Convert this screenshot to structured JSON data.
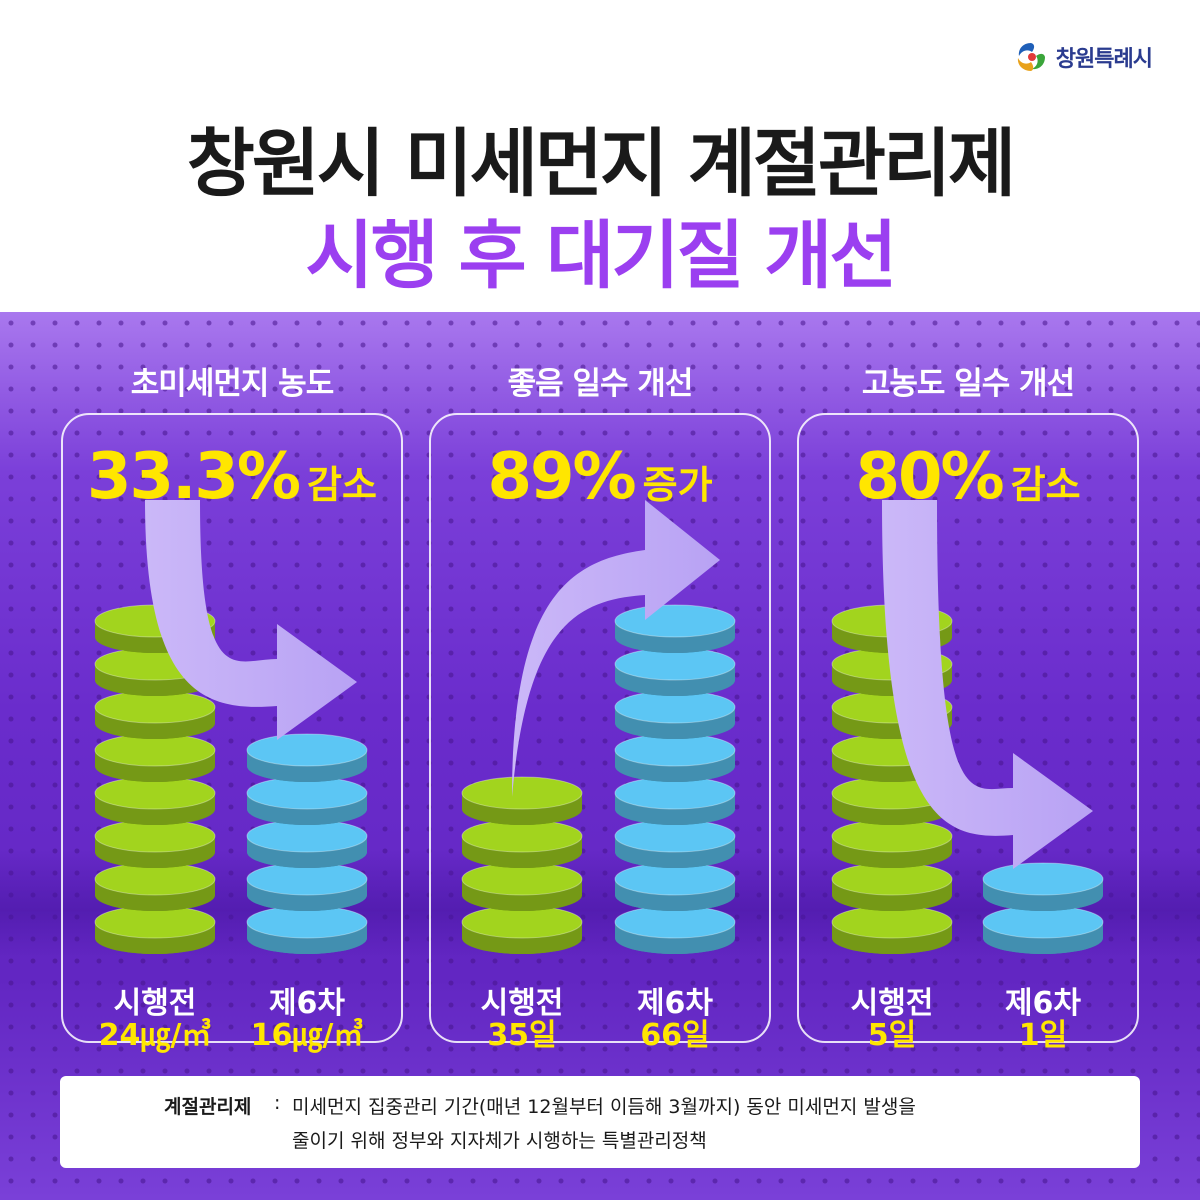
{
  "logo": {
    "text": "창원특례시"
  },
  "header": {
    "title_line1": "창원시 미세먼지 계절관리제",
    "title_line2": "시행 후 대기질 개선"
  },
  "colors": {
    "accent_purple": "#9b3ff0",
    "headline_yellow": "#ffe600",
    "before_green": "#a2d41e",
    "after_blue": "#5cc6f4",
    "arrow_lavender": "#b8a2f4"
  },
  "chart_data": [
    {
      "type": "bar",
      "title": "초미세먼지 농도",
      "headline": {
        "percent": "33.3%",
        "word": "감소"
      },
      "trend": "down",
      "categories": [
        "시행전",
        "제6차"
      ],
      "values": [
        24,
        16
      ],
      "value_labels": [
        "24㎍/㎥",
        "16㎍/㎥"
      ]
    },
    {
      "type": "bar",
      "title": "좋음 일수 개선",
      "headline": {
        "percent": "89%",
        "word": "증가"
      },
      "trend": "up",
      "categories": [
        "시행전",
        "제6차"
      ],
      "values": [
        35,
        66
      ],
      "value_labels": [
        "35일",
        "66일"
      ]
    },
    {
      "type": "bar",
      "title": "고농도 일수 개선",
      "headline": {
        "percent": "80%",
        "word": "감소"
      },
      "trend": "down",
      "categories": [
        "시행전",
        "제6차"
      ],
      "values": [
        5,
        1
      ],
      "value_labels": [
        "5일",
        "1일"
      ]
    }
  ],
  "note": {
    "term": "계절관리제",
    "separator": ":",
    "line1": "미세먼지 집중관리 기간(매년 12월부터 이듬해 3월까지) 동안 미세먼지 발생을",
    "line2": "줄이기 위해 정부와 지자체가 시행하는 특별관리정책"
  }
}
